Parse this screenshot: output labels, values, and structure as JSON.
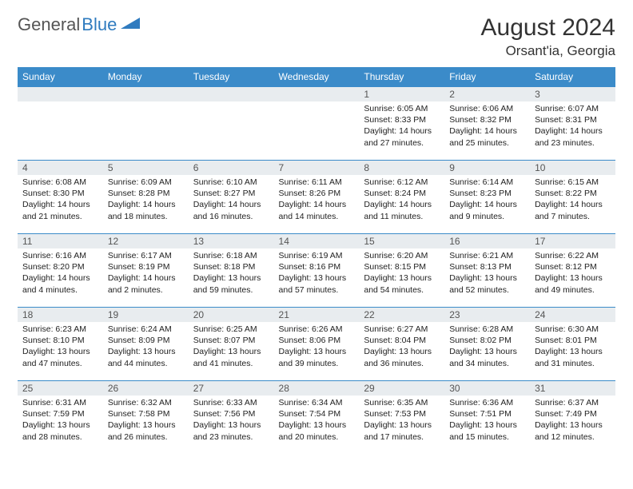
{
  "logo": {
    "textGray": "General",
    "textBlue": "Blue"
  },
  "title": "August 2024",
  "location": "Orsant'ia, Georgia",
  "colors": {
    "headerBg": "#3b8bc9",
    "headerText": "#ffffff",
    "dayNumBg": "#e8ecef",
    "rowBorder": "#3b8bc9",
    "bodyText": "#222222",
    "titleText": "#333333",
    "logoGray": "#555555",
    "logoBlue": "#2f7bbf"
  },
  "weekdays": [
    "Sunday",
    "Monday",
    "Tuesday",
    "Wednesday",
    "Thursday",
    "Friday",
    "Saturday"
  ],
  "startOffset": 4,
  "days": [
    {
      "n": "1",
      "sunrise": "6:05 AM",
      "sunset": "8:33 PM",
      "daylight": "14 hours and 27 minutes."
    },
    {
      "n": "2",
      "sunrise": "6:06 AM",
      "sunset": "8:32 PM",
      "daylight": "14 hours and 25 minutes."
    },
    {
      "n": "3",
      "sunrise": "6:07 AM",
      "sunset": "8:31 PM",
      "daylight": "14 hours and 23 minutes."
    },
    {
      "n": "4",
      "sunrise": "6:08 AM",
      "sunset": "8:30 PM",
      "daylight": "14 hours and 21 minutes."
    },
    {
      "n": "5",
      "sunrise": "6:09 AM",
      "sunset": "8:28 PM",
      "daylight": "14 hours and 18 minutes."
    },
    {
      "n": "6",
      "sunrise": "6:10 AM",
      "sunset": "8:27 PM",
      "daylight": "14 hours and 16 minutes."
    },
    {
      "n": "7",
      "sunrise": "6:11 AM",
      "sunset": "8:26 PM",
      "daylight": "14 hours and 14 minutes."
    },
    {
      "n": "8",
      "sunrise": "6:12 AM",
      "sunset": "8:24 PM",
      "daylight": "14 hours and 11 minutes."
    },
    {
      "n": "9",
      "sunrise": "6:14 AM",
      "sunset": "8:23 PM",
      "daylight": "14 hours and 9 minutes."
    },
    {
      "n": "10",
      "sunrise": "6:15 AM",
      "sunset": "8:22 PM",
      "daylight": "14 hours and 7 minutes."
    },
    {
      "n": "11",
      "sunrise": "6:16 AM",
      "sunset": "8:20 PM",
      "daylight": "14 hours and 4 minutes."
    },
    {
      "n": "12",
      "sunrise": "6:17 AM",
      "sunset": "8:19 PM",
      "daylight": "14 hours and 2 minutes."
    },
    {
      "n": "13",
      "sunrise": "6:18 AM",
      "sunset": "8:18 PM",
      "daylight": "13 hours and 59 minutes."
    },
    {
      "n": "14",
      "sunrise": "6:19 AM",
      "sunset": "8:16 PM",
      "daylight": "13 hours and 57 minutes."
    },
    {
      "n": "15",
      "sunrise": "6:20 AM",
      "sunset": "8:15 PM",
      "daylight": "13 hours and 54 minutes."
    },
    {
      "n": "16",
      "sunrise": "6:21 AM",
      "sunset": "8:13 PM",
      "daylight": "13 hours and 52 minutes."
    },
    {
      "n": "17",
      "sunrise": "6:22 AM",
      "sunset": "8:12 PM",
      "daylight": "13 hours and 49 minutes."
    },
    {
      "n": "18",
      "sunrise": "6:23 AM",
      "sunset": "8:10 PM",
      "daylight": "13 hours and 47 minutes."
    },
    {
      "n": "19",
      "sunrise": "6:24 AM",
      "sunset": "8:09 PM",
      "daylight": "13 hours and 44 minutes."
    },
    {
      "n": "20",
      "sunrise": "6:25 AM",
      "sunset": "8:07 PM",
      "daylight": "13 hours and 41 minutes."
    },
    {
      "n": "21",
      "sunrise": "6:26 AM",
      "sunset": "8:06 PM",
      "daylight": "13 hours and 39 minutes."
    },
    {
      "n": "22",
      "sunrise": "6:27 AM",
      "sunset": "8:04 PM",
      "daylight": "13 hours and 36 minutes."
    },
    {
      "n": "23",
      "sunrise": "6:28 AM",
      "sunset": "8:02 PM",
      "daylight": "13 hours and 34 minutes."
    },
    {
      "n": "24",
      "sunrise": "6:30 AM",
      "sunset": "8:01 PM",
      "daylight": "13 hours and 31 minutes."
    },
    {
      "n": "25",
      "sunrise": "6:31 AM",
      "sunset": "7:59 PM",
      "daylight": "13 hours and 28 minutes."
    },
    {
      "n": "26",
      "sunrise": "6:32 AM",
      "sunset": "7:58 PM",
      "daylight": "13 hours and 26 minutes."
    },
    {
      "n": "27",
      "sunrise": "6:33 AM",
      "sunset": "7:56 PM",
      "daylight": "13 hours and 23 minutes."
    },
    {
      "n": "28",
      "sunrise": "6:34 AM",
      "sunset": "7:54 PM",
      "daylight": "13 hours and 20 minutes."
    },
    {
      "n": "29",
      "sunrise": "6:35 AM",
      "sunset": "7:53 PM",
      "daylight": "13 hours and 17 minutes."
    },
    {
      "n": "30",
      "sunrise": "6:36 AM",
      "sunset": "7:51 PM",
      "daylight": "13 hours and 15 minutes."
    },
    {
      "n": "31",
      "sunrise": "6:37 AM",
      "sunset": "7:49 PM",
      "daylight": "13 hours and 12 minutes."
    }
  ],
  "labels": {
    "sunrise": "Sunrise: ",
    "sunset": "Sunset: ",
    "daylight": "Daylight: "
  }
}
